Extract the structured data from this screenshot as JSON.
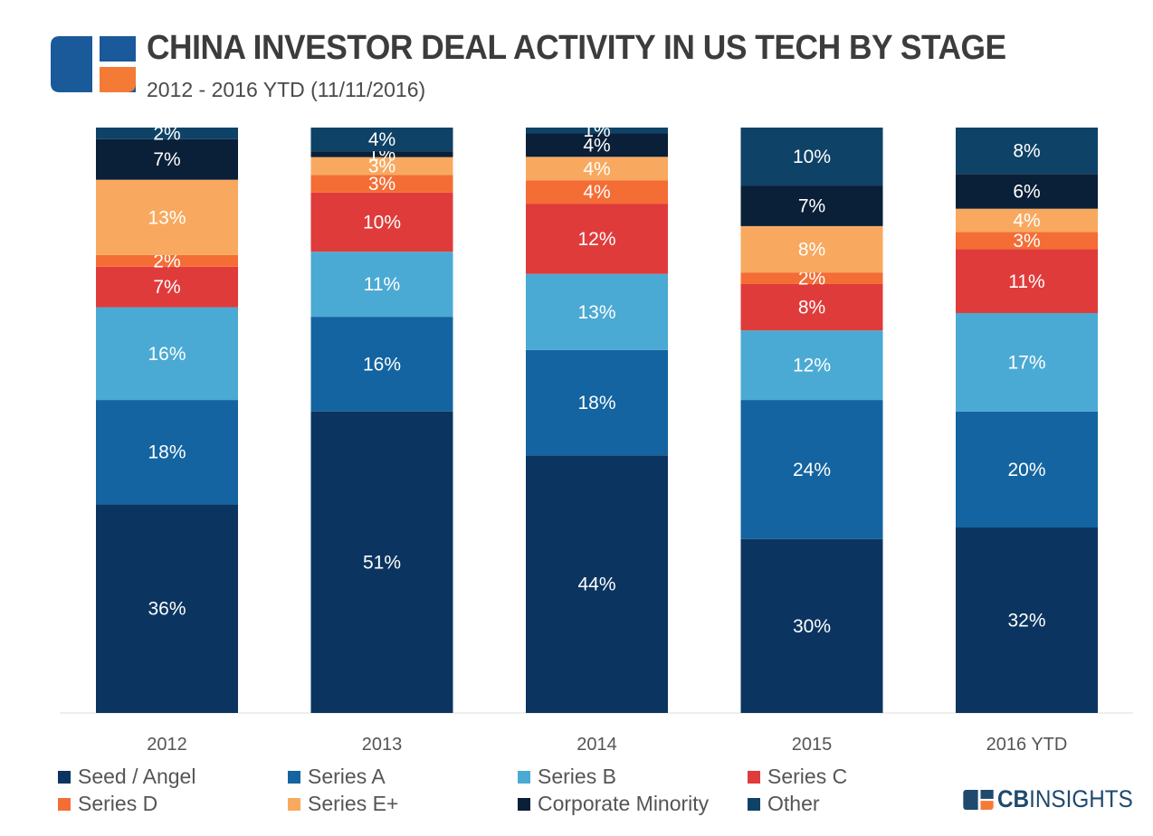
{
  "header": {
    "title": "CHINA INVESTOR DEAL ACTIVITY IN US TECH BY STAGE",
    "subtitle": "2012 - 2016 YTD (11/11/2016)"
  },
  "brand": {
    "prefix": "CB",
    "suffix": "INSIGHTS"
  },
  "colors": {
    "Seed / Angel": "#0b3560",
    "Series A": "#1364a0",
    "Series B": "#4baad3",
    "Series C": "#e03b3b",
    "Series D": "#f46d35",
    "Series E+": "#f8a95f",
    "Corporate Minority": "#0a1f38",
    "Other": "#0e4266",
    "logo_blue": "#1a5a9a",
    "logo_orange": "#f47b36"
  },
  "chart_data": {
    "type": "bar",
    "stacked": true,
    "normalized_percent": true,
    "categories": [
      "2012",
      "2013",
      "2014",
      "2015",
      "2016 YTD"
    ],
    "series": [
      {
        "name": "Seed / Angel",
        "values": [
          36,
          51,
          44,
          30,
          32
        ]
      },
      {
        "name": "Series A",
        "values": [
          18,
          16,
          18,
          24,
          20
        ]
      },
      {
        "name": "Series B",
        "values": [
          16,
          11,
          13,
          12,
          17
        ]
      },
      {
        "name": "Series C",
        "values": [
          7,
          10,
          12,
          8,
          11
        ]
      },
      {
        "name": "Series D",
        "values": [
          2,
          3,
          4,
          2,
          3
        ]
      },
      {
        "name": "Series E+",
        "values": [
          13,
          3,
          4,
          8,
          4
        ]
      },
      {
        "name": "Corporate Minority",
        "values": [
          7,
          1,
          4,
          7,
          6
        ]
      },
      {
        "name": "Other",
        "values": [
          2,
          4,
          1,
          10,
          8
        ]
      }
    ],
    "legend": [
      "Seed / Angel",
      "Series A",
      "Series B",
      "Series C",
      "Series D",
      "Series E+",
      "Corporate Minority",
      "Other"
    ],
    "ylim": [
      0,
      100
    ],
    "xlabel": "",
    "ylabel": "",
    "grid": false,
    "legend_position": "bottom"
  }
}
